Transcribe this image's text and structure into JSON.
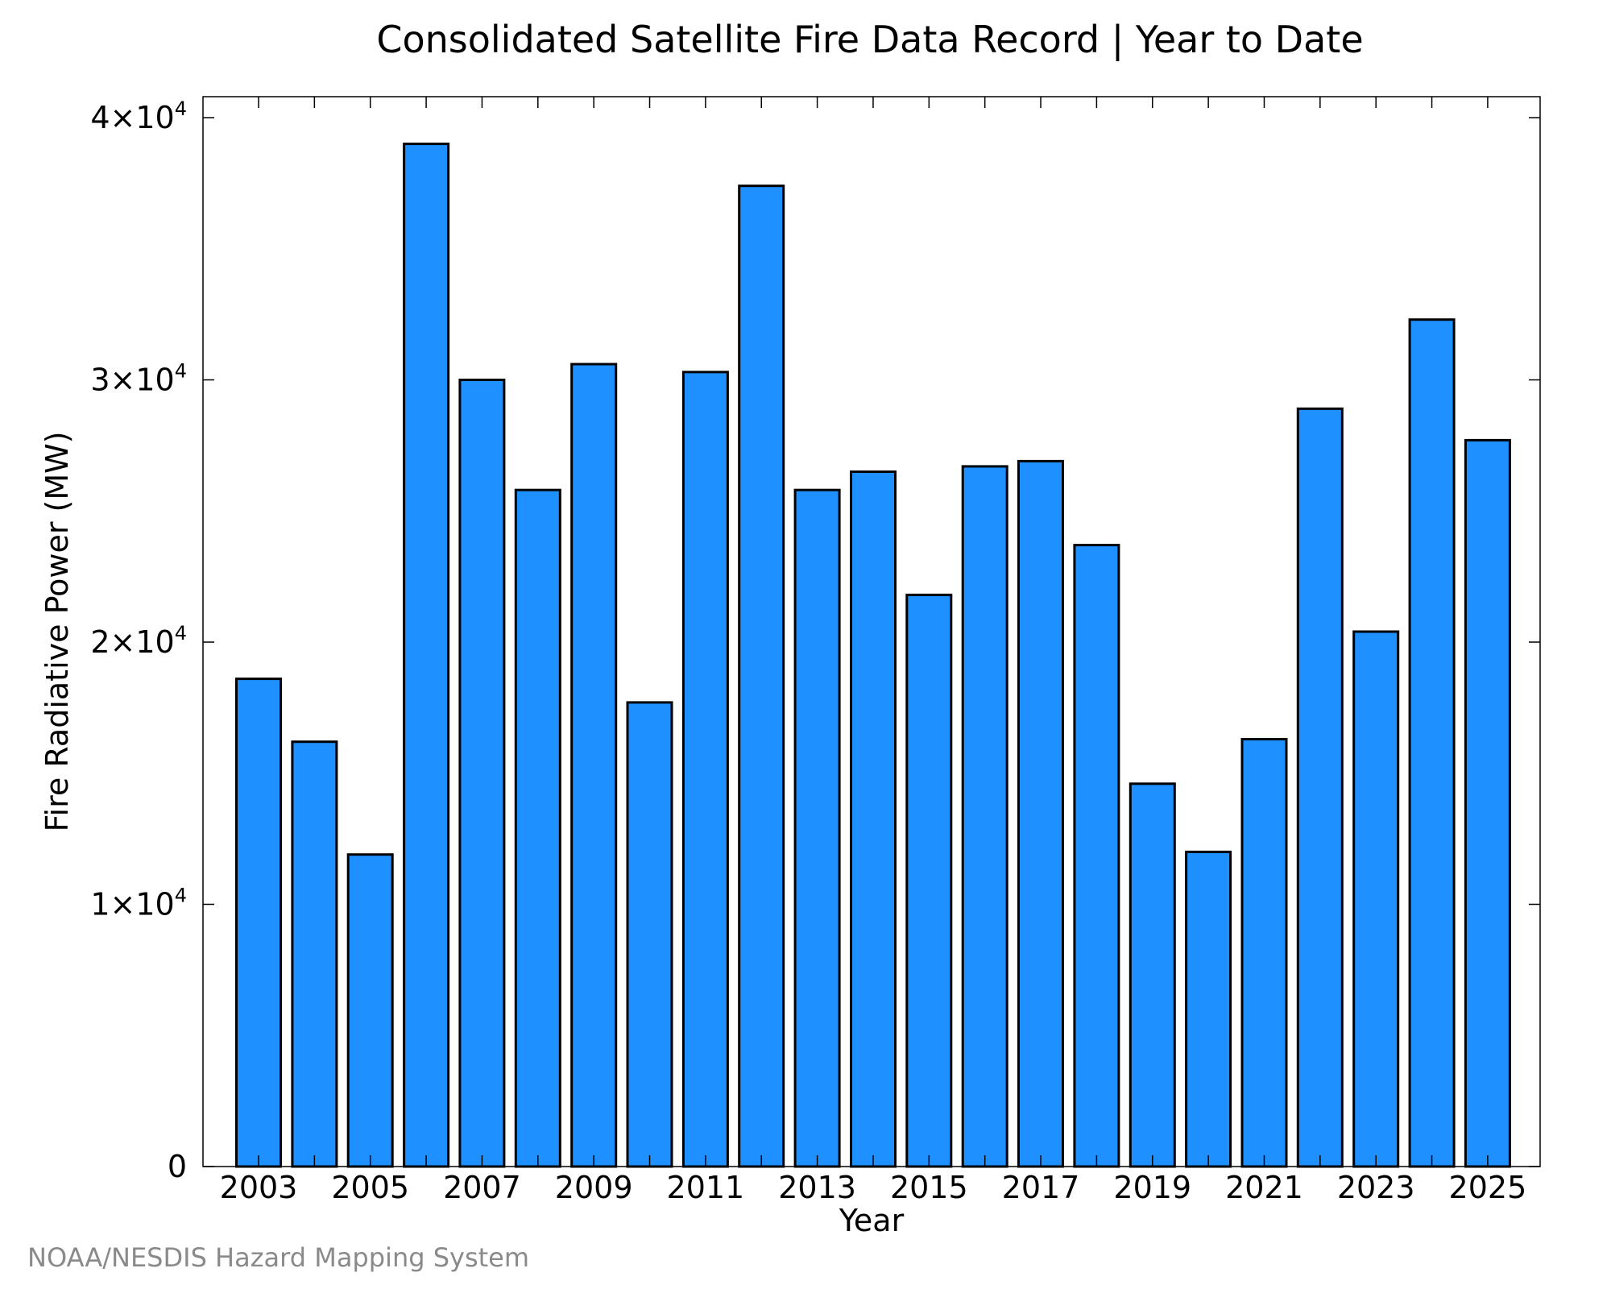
{
  "chart_data": {
    "type": "bar",
    "title": "Consolidated Satellite Fire Data Record | Year to Date",
    "xlabel": "Year",
    "ylabel": "Fire Radiative Power (MW)",
    "ylim": [
      0,
      40800
    ],
    "y_ticks": [
      0,
      10000,
      20000,
      30000,
      40000
    ],
    "y_tick_labels": [
      {
        "base": "0",
        "exp": ""
      },
      {
        "base": "1×10",
        "exp": "4"
      },
      {
        "base": "2×10",
        "exp": "4"
      },
      {
        "base": "3×10",
        "exp": "4"
      },
      {
        "base": "4×10",
        "exp": "4"
      }
    ],
    "x_tick_labels": [
      "2003",
      "2005",
      "2007",
      "2009",
      "2011",
      "2013",
      "2015",
      "2017",
      "2019",
      "2021",
      "2023",
      "2025"
    ],
    "categories": [
      2003,
      2004,
      2005,
      2006,
      2007,
      2008,
      2009,
      2010,
      2011,
      2012,
      2013,
      2014,
      2015,
      2016,
      2017,
      2018,
      2019,
      2020,
      2021,
      2022,
      2023,
      2024,
      2025
    ],
    "values": [
      18600,
      16200,
      11900,
      39000,
      30000,
      25800,
      30600,
      17700,
      30300,
      37400,
      25800,
      26500,
      21800,
      26700,
      26900,
      23700,
      14600,
      12000,
      16300,
      28900,
      20400,
      32300,
      27700
    ],
    "bar_color": "#1e90ff",
    "grid": false,
    "credit": "NOAA/NESDIS Hazard Mapping System"
  }
}
